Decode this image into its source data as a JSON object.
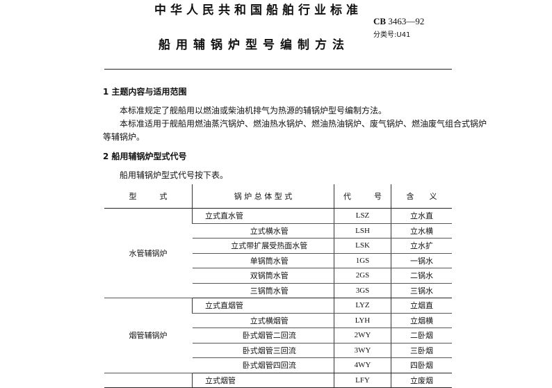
{
  "header": {
    "org_title": "中华人民共和国船舶行业标准",
    "std_prefix": "CB",
    "std_number": "3463—92",
    "classification": "分类号:U41",
    "doc_title": "船用辅锅炉型号编制方法"
  },
  "sections": [
    {
      "heading": "1  主题内容与适用范围",
      "paragraphs": [
        "本标准规定了舰船用以燃油或柴油机排气为热源的辅锅炉型号编制方法。",
        "本标准适用于舰船用燃油蒸汽锅炉、燃油热水锅炉、燃油热油锅炉、废气锅炉、燃油废气组合式锅炉",
        "等辅锅炉。"
      ]
    },
    {
      "heading": "2  船用辅锅炉型式代号",
      "paragraphs": [
        "船用辅锅炉型式代号按下表。"
      ]
    }
  ],
  "table": {
    "headers": [
      "型　　　式",
      "锅 炉 总 体 型 式",
      "代　　　号",
      "含　　义"
    ],
    "groups": [
      {
        "type": "水管辅锅炉",
        "rows": [
          [
            "立式直水管",
            "LSZ",
            "立水直"
          ],
          [
            "立式横水管",
            "LSH",
            "立水横"
          ],
          [
            "立式带扩展受热面水管",
            "LSK",
            "立水扩"
          ],
          [
            "单锅筒水管",
            "1GS",
            "一锅水"
          ],
          [
            "双锅筒水管",
            "2GS",
            "二锅水"
          ],
          [
            "三锅筒水管",
            "3GS",
            "三锅水"
          ]
        ]
      },
      {
        "type": "烟管辅锅炉",
        "rows": [
          [
            "立式直烟管",
            "LYZ",
            "立烟直"
          ],
          [
            "立式横烟管",
            "LYH",
            "立烟横"
          ],
          [
            "卧式烟管二回流",
            "2WY",
            "二卧烟"
          ],
          [
            "卧式烟管三回流",
            "3WY",
            "三卧烟"
          ],
          [
            "卧式烟管四回流",
            "4WY",
            "四卧烟"
          ]
        ]
      },
      {
        "type": "",
        "rows": [
          [
            "立式烟管",
            "LFY",
            "立废烟"
          ]
        ]
      }
    ]
  }
}
